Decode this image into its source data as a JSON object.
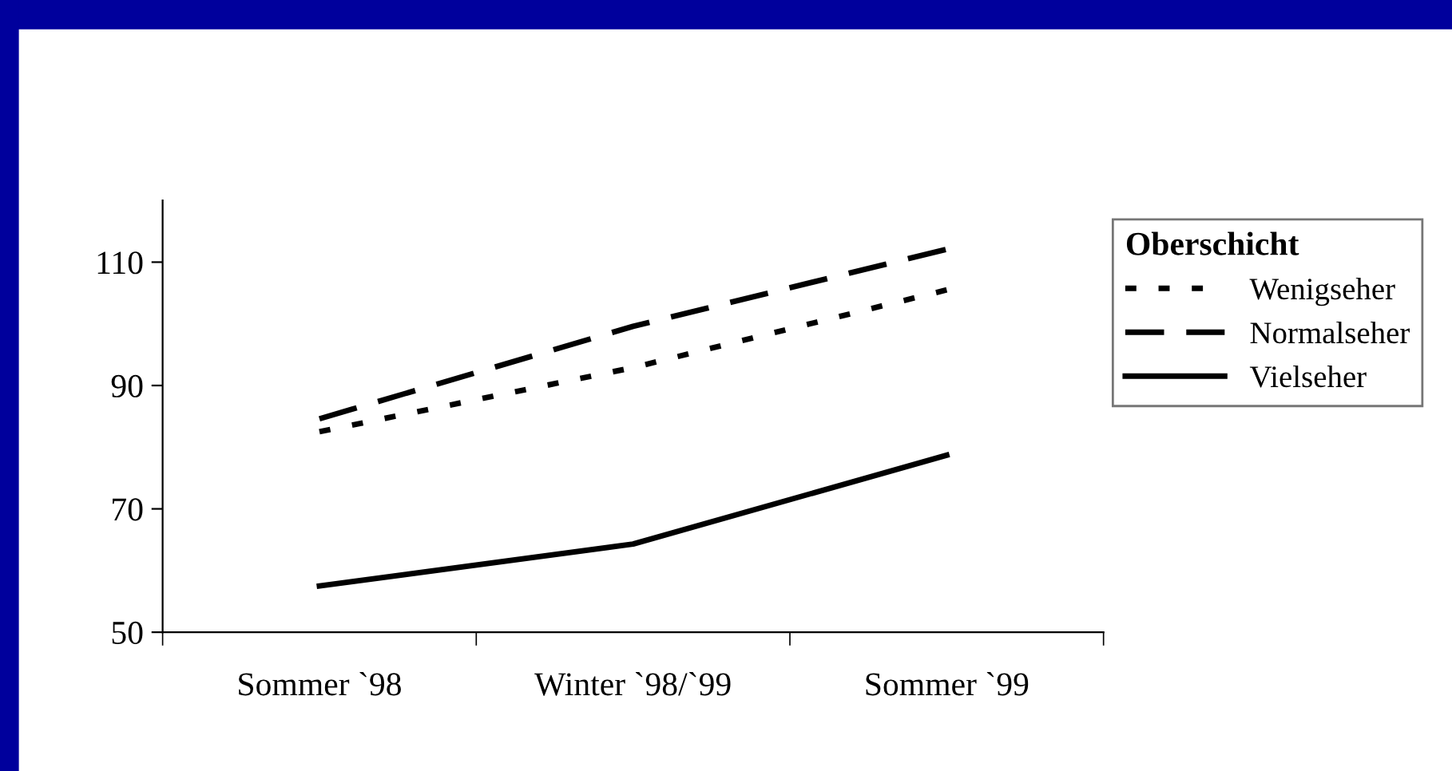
{
  "chart_data": {
    "type": "line",
    "categories": [
      "Sommer `98",
      "Winter `98/`99",
      "Sommer `99"
    ],
    "series": [
      {
        "name": "Wenigseher",
        "color": "#000000",
        "line_style": "dotted",
        "values": [
          82.5,
          92.9,
          105.5
        ]
      },
      {
        "name": "Normalseher",
        "color": "#000000",
        "line_style": "dashed",
        "values": [
          84.6,
          99.6,
          112.1
        ]
      },
      {
        "name": "Vielseher",
        "color": "#000000",
        "line_style": "solid",
        "values": [
          57.5,
          64.3,
          78.7
        ]
      }
    ],
    "legend_title": "Oberschicht",
    "legend": "right",
    "ylim": [
      50,
      120
    ],
    "yticks": [
      50,
      70,
      90,
      110
    ],
    "grid": false
  }
}
